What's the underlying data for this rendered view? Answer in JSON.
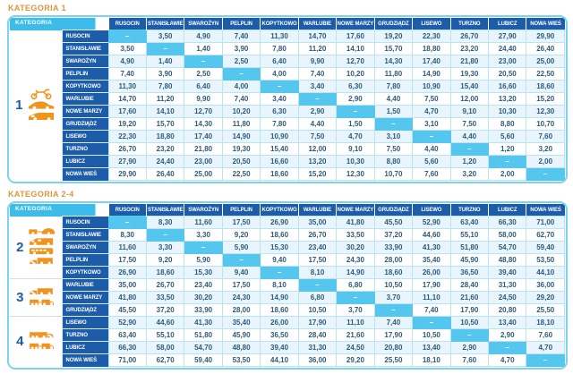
{
  "dash": "–",
  "colors": {
    "title_orange": "#E0953F",
    "header_blue": "#1D5CA9",
    "corner_cyan": "#3EBCE9",
    "diagonal_cyan": "#55C7EE",
    "row_tint": "#E8F5FC",
    "grid_border": "#B9E3F6",
    "outer_border": "#7AD3F0",
    "value_text": "#2D5A7C",
    "vehicle_orange": "#F0941E"
  },
  "tables": [
    {
      "title": "KATEGORIA 1",
      "corner_label": "KATEGORIA",
      "dash": "–",
      "columns": [
        "RUSOCIN",
        "STANISŁAWIE",
        "SWAROŻYN",
        "PELPLIN",
        "KOPYTKOWO",
        "WARLUBIE",
        "NOWE MARZY",
        "GRUDZIĄDZ",
        "LISEWO",
        "TURZNO",
        "LUBICZ",
        "NOWA WIEŚ"
      ],
      "category_groups": [
        {
          "number": "1",
          "icons": [
            "motorcycle-icon",
            "car-icon",
            "van-icon"
          ],
          "row_start": 0,
          "row_count": 12,
          "divider": false
        }
      ],
      "rows": [
        {
          "label": "RUSOCIN",
          "values": [
            "–",
            "3,50",
            "4,90",
            "7,40",
            "11,30",
            "14,70",
            "17,60",
            "19,20",
            "22,30",
            "26,70",
            "27,90",
            "29,90"
          ]
        },
        {
          "label": "STANISŁAWIE",
          "values": [
            "3,50",
            "–",
            "1,40",
            "3,90",
            "7,80",
            "11,20",
            "14,10",
            "15,70",
            "18,80",
            "23,20",
            "24,40",
            "26,40"
          ]
        },
        {
          "label": "SWAROŻYN",
          "values": [
            "4,90",
            "1,40",
            "–",
            "2,50",
            "6,40",
            "9,90",
            "12,70",
            "14,30",
            "17,40",
            "21,80",
            "23,00",
            "25,00"
          ]
        },
        {
          "label": "PELPLIN",
          "values": [
            "7,40",
            "3,90",
            "2,50",
            "–",
            "4,00",
            "7,40",
            "10,20",
            "11,80",
            "14,90",
            "19,30",
            "20,50",
            "22,50"
          ]
        },
        {
          "label": "KOPYTKOWO",
          "values": [
            "11,30",
            "7,80",
            "6,40",
            "4,00",
            "–",
            "3,40",
            "6,30",
            "7,80",
            "10,90",
            "15,40",
            "16,60",
            "18,60"
          ]
        },
        {
          "label": "WARLUBIE",
          "values": [
            "14,70",
            "11,20",
            "9,90",
            "7,40",
            "3,40",
            "–",
            "2,90",
            "4,40",
            "7,50",
            "12,00",
            "13,20",
            "15,20"
          ]
        },
        {
          "label": "NOWE MARZY",
          "values": [
            "17,60",
            "14,10",
            "12,70",
            "10,20",
            "6,30",
            "2,90",
            "–",
            "1,50",
            "4,70",
            "9,10",
            "10,30",
            "12,30"
          ]
        },
        {
          "label": "GRUDZIĄDZ",
          "values": [
            "19,20",
            "15,70",
            "14,30",
            "11,80",
            "7,80",
            "4,40",
            "1,50",
            "–",
            "3,10",
            "7,50",
            "8,80",
            "10,70"
          ]
        },
        {
          "label": "LISEWO",
          "values": [
            "22,30",
            "18,80",
            "17,40",
            "14,90",
            "10,90",
            "7,50",
            "4,70",
            "3,10",
            "–",
            "4,40",
            "5,60",
            "7,60"
          ]
        },
        {
          "label": "TURZNO",
          "values": [
            "26,70",
            "23,20",
            "21,80",
            "19,30",
            "15,40",
            "12,00",
            "9,10",
            "7,50",
            "4,40",
            "–",
            "1,20",
            "3,20"
          ]
        },
        {
          "label": "LUBICZ",
          "values": [
            "27,90",
            "24,40",
            "23,00",
            "20,50",
            "16,60",
            "13,20",
            "10,30",
            "8,80",
            "5,60",
            "1,20",
            "–",
            "2,00"
          ]
        },
        {
          "label": "NOWA WIEŚ",
          "values": [
            "29,90",
            "26,40",
            "25,00",
            "22,50",
            "18,60",
            "15,20",
            "12,30",
            "10,70",
            "7,60",
            "3,20",
            "2,00",
            "–"
          ]
        }
      ]
    },
    {
      "title": "KATEGORIA 2-4",
      "corner_label": "KATEGORIA",
      "dash": "–",
      "columns": [
        "RUSOCIN",
        "STANISŁAWIE",
        "SWAROŻYN",
        "PELPLIN",
        "KOPYTKOWO",
        "WARLUBIE",
        "NOWE MARZY",
        "GRUDZIĄDZ",
        "LISEWO",
        "TURZNO",
        "LUBICZ",
        "NOWA WIEŚ"
      ],
      "category_groups": [
        {
          "number": "2",
          "icons": [
            "car-trailer-icon",
            "minibus-icon",
            "bus-icon",
            "truck-icon"
          ],
          "row_start": 0,
          "row_count": 5,
          "divider": true
        },
        {
          "number": "3",
          "icons": [
            "truck-icon",
            "truck-trailer-icon"
          ],
          "row_start": 5,
          "row_count": 3,
          "divider": true
        },
        {
          "number": "4",
          "icons": [
            "semi-truck-icon",
            "truck-trailer-icon"
          ],
          "row_start": 8,
          "row_count": 4,
          "divider": false
        }
      ],
      "rows": [
        {
          "label": "RUSOCIN",
          "values": [
            "–",
            "8,30",
            "11,60",
            "17,50",
            "26,90",
            "35,00",
            "41,80",
            "45,50",
            "52,90",
            "63,40",
            "66,30",
            "71,00"
          ]
        },
        {
          "label": "STANISŁAWIE",
          "values": [
            "8,30",
            "–",
            "3,30",
            "9,20",
            "18,60",
            "26,70",
            "33,50",
            "37,20",
            "44,60",
            "55,10",
            "58,00",
            "62,70"
          ]
        },
        {
          "label": "SWAROŻYN",
          "values": [
            "11,60",
            "3,30",
            "–",
            "5,90",
            "15,30",
            "23,40",
            "30,20",
            "33,90",
            "41,30",
            "51,80",
            "54,70",
            "59,40"
          ]
        },
        {
          "label": "PELPLIN",
          "values": [
            "17,50",
            "9,20",
            "5,90",
            "–",
            "9,40",
            "17,50",
            "24,30",
            "28,00",
            "35,40",
            "45,90",
            "48,80",
            "53,50"
          ]
        },
        {
          "label": "KOPYTKOWO",
          "values": [
            "26,90",
            "18,60",
            "15,30",
            "9,40",
            "–",
            "8,10",
            "14,90",
            "18,60",
            "26,00",
            "36,50",
            "39,40",
            "44,10"
          ]
        },
        {
          "label": "WARLUBIE",
          "values": [
            "35,00",
            "26,70",
            "23,40",
            "17,50",
            "8,10",
            "–",
            "6,80",
            "10,50",
            "17,90",
            "28,40",
            "31,30",
            "36,00"
          ]
        },
        {
          "label": "NOWE MARZY",
          "values": [
            "41,80",
            "33,50",
            "30,20",
            "24,30",
            "14,90",
            "6,80",
            "–",
            "3,70",
            "11,10",
            "21,60",
            "24,50",
            "29,20"
          ]
        },
        {
          "label": "GRUDZIĄDZ",
          "values": [
            "45,50",
            "37,20",
            "33,90",
            "28,00",
            "18,60",
            "10,50",
            "3,70",
            "–",
            "7,40",
            "17,90",
            "20,80",
            "25,50"
          ]
        },
        {
          "label": "LISEWO",
          "values": [
            "52,90",
            "44,60",
            "41,30",
            "35,40",
            "26,00",
            "17,90",
            "11,10",
            "7,40",
            "–",
            "10,50",
            "13,40",
            "18,10"
          ]
        },
        {
          "label": "TURZNO",
          "values": [
            "63,40",
            "55,10",
            "51,80",
            "45,90",
            "36,50",
            "28,40",
            "21,60",
            "17,90",
            "10,50",
            "–",
            "2,90",
            "7,60"
          ]
        },
        {
          "label": "LUBICZ",
          "values": [
            "66,30",
            "58,00",
            "54,70",
            "48,80",
            "39,40",
            "31,30",
            "24,50",
            "20,80",
            "13,40",
            "2,90",
            "–",
            "4,70"
          ]
        },
        {
          "label": "NOWA WIEŚ",
          "values": [
            "71,00",
            "62,70",
            "59,40",
            "53,50",
            "44,10",
            "36,00",
            "29,20",
            "25,50",
            "18,10",
            "7,60",
            "4,70",
            "–"
          ]
        }
      ]
    }
  ]
}
